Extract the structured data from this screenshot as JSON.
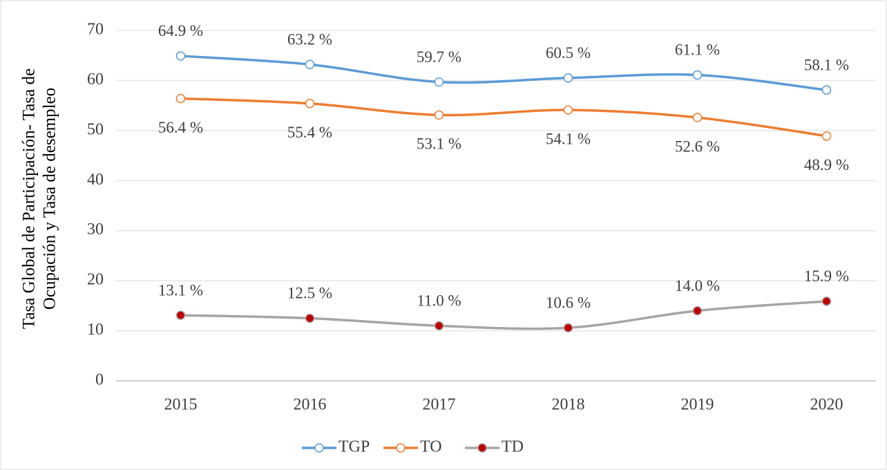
{
  "chart_data": {
    "type": "line",
    "ylabel": [
      "Tasa Global de Participación- Tasa de",
      "Ocupación y Tasa de desempleo"
    ],
    "categories": [
      "2015",
      "2016",
      "2017",
      "2018",
      "2019",
      "2020"
    ],
    "series": [
      {
        "name": "TGP",
        "color": "#5b9bd5",
        "marker_color": "#ffffff",
        "values": [
          64.9,
          63.2,
          59.7,
          60.5,
          61.1,
          58.1
        ],
        "value_labels": [
          "64.9 %",
          "63.2 %",
          "59.7 %",
          "60.5 %",
          "61.1 %",
          "58.1 %"
        ]
      },
      {
        "name": "TO",
        "color": "#ed7d31",
        "marker_color": "#ffffff",
        "values": [
          56.4,
          55.4,
          53.1,
          54.1,
          52.6,
          48.9
        ],
        "value_labels": [
          "56.4 %",
          "55.4 %",
          "53.1 %",
          "54.1 %",
          "52.6 %",
          "48.9 %"
        ]
      },
      {
        "name": "TD",
        "color": "#a5a5a5",
        "marker_color": "#c00000",
        "values": [
          13.1,
          12.5,
          11.0,
          10.6,
          14.0,
          15.9
        ],
        "value_labels": [
          "13.1 %",
          "12.5 %",
          "11.0 %",
          "10.6 %",
          "14.0 %",
          "15.9 %"
        ]
      }
    ],
    "ylim": [
      0,
      70
    ],
    "yticks": [
      0,
      10,
      20,
      30,
      40,
      50,
      60,
      70
    ],
    "grid": true,
    "legend": "bottom"
  }
}
